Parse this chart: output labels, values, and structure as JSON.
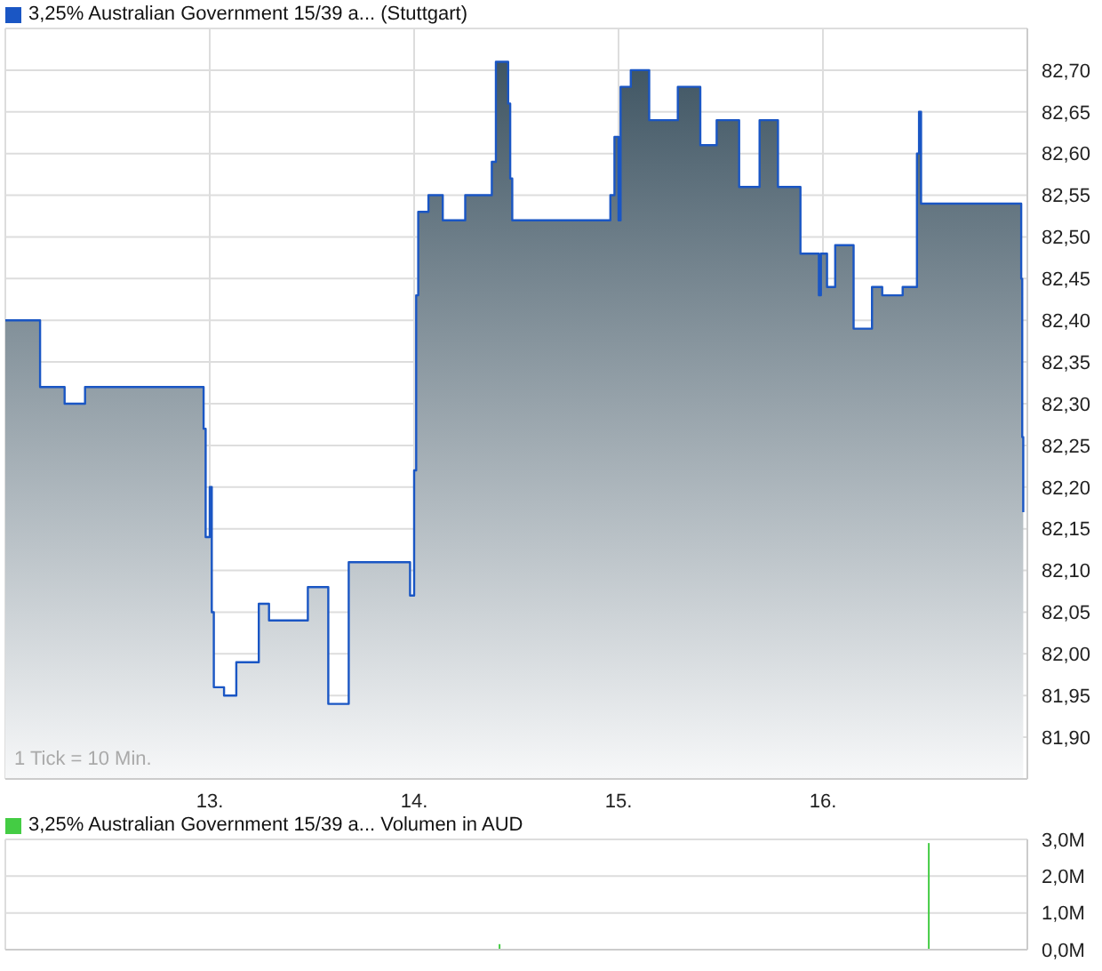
{
  "chart_data": [
    {
      "type": "area",
      "legend": "top left",
      "grid": true,
      "xlim": [
        12,
        17
      ],
      "xticks": [
        {
          "value": 13,
          "label": "13."
        },
        {
          "value": 14,
          "label": "14."
        },
        {
          "value": 15,
          "label": "15."
        },
        {
          "value": 16,
          "label": "16."
        }
      ],
      "ylim": [
        81.85,
        82.75
      ],
      "yticks": [
        {
          "value": 81.9,
          "label": "81,90"
        },
        {
          "value": 81.95,
          "label": "81,95"
        },
        {
          "value": 82,
          "label": "82,00"
        },
        {
          "value": 82.05,
          "label": "82,05"
        },
        {
          "value": 82.1,
          "label": "82,10"
        },
        {
          "value": 82.15,
          "label": "82,15"
        },
        {
          "value": 82.2,
          "label": "82,20"
        },
        {
          "value": 82.25,
          "label": "82,25"
        },
        {
          "value": 82.3,
          "label": "82,30"
        },
        {
          "value": 82.35,
          "label": "82,35"
        },
        {
          "value": 82.4,
          "label": "82,40"
        },
        {
          "value": 82.45,
          "label": "82,45"
        },
        {
          "value": 82.5,
          "label": "82,50"
        },
        {
          "value": 82.55,
          "label": "82,55"
        },
        {
          "value": 82.6,
          "label": "82,60"
        },
        {
          "value": 82.65,
          "label": "82,65"
        },
        {
          "value": 82.7,
          "label": "82,70"
        }
      ],
      "annotations": [
        "1 Tick = 10 Min."
      ],
      "series": [
        {
          "name": "3,25% Australian Government 15/39 a... (Stuttgart)",
          "color": "#1a56c4",
          "x": [
            12.0,
            12.17,
            12.17,
            12.29,
            12.29,
            12.39,
            12.39,
            12.97,
            12.97,
            12.98,
            12.98,
            13.0,
            13.0,
            13.01,
            13.01,
            13.02,
            13.02,
            13.07,
            13.07,
            13.13,
            13.13,
            13.24,
            13.24,
            13.29,
            13.29,
            13.48,
            13.48,
            13.58,
            13.58,
            13.68,
            13.68,
            13.98,
            13.98,
            14.0,
            14.0,
            14.01,
            14.01,
            14.02,
            14.02,
            14.07,
            14.07,
            14.14,
            14.14,
            14.25,
            14.25,
            14.38,
            14.38,
            14.4,
            14.4,
            14.46,
            14.46,
            14.47,
            14.47,
            14.48,
            14.48,
            14.96,
            14.96,
            14.98,
            14.98,
            15.0,
            15.0,
            15.01,
            15.01,
            15.06,
            15.06,
            15.15,
            15.15,
            15.29,
            15.29,
            15.4,
            15.4,
            15.48,
            15.48,
            15.59,
            15.59,
            15.69,
            15.69,
            15.78,
            15.78,
            15.89,
            15.89,
            15.98,
            15.98,
            15.99,
            15.99,
            16.02,
            16.02,
            16.06,
            16.06,
            16.15,
            16.15,
            16.24,
            16.24,
            16.29,
            16.29,
            16.39,
            16.39,
            16.46,
            16.46,
            16.47,
            16.47,
            16.48,
            16.48,
            16.97,
            16.97,
            16.975,
            16.975,
            16.98,
            16.98
          ],
          "values": [
            82.4,
            82.4,
            82.32,
            82.32,
            82.3,
            82.3,
            82.32,
            82.32,
            82.27,
            82.27,
            82.14,
            82.14,
            82.2,
            82.2,
            82.05,
            82.05,
            81.96,
            81.96,
            81.95,
            81.95,
            81.99,
            81.99,
            82.06,
            82.06,
            82.04,
            82.04,
            82.08,
            82.08,
            81.94,
            81.94,
            82.11,
            82.11,
            82.07,
            82.07,
            82.22,
            82.22,
            82.43,
            82.43,
            82.53,
            82.53,
            82.55,
            82.55,
            82.52,
            82.52,
            82.55,
            82.55,
            82.59,
            82.59,
            82.71,
            82.71,
            82.66,
            82.66,
            82.57,
            82.57,
            82.52,
            82.52,
            82.55,
            82.55,
            82.62,
            82.62,
            82.52,
            82.52,
            82.68,
            82.68,
            82.7,
            82.7,
            82.64,
            82.64,
            82.68,
            82.68,
            82.61,
            82.61,
            82.64,
            82.64,
            82.56,
            82.56,
            82.64,
            82.64,
            82.56,
            82.56,
            82.48,
            82.48,
            82.43,
            82.43,
            82.48,
            82.48,
            82.44,
            82.44,
            82.49,
            82.49,
            82.39,
            82.39,
            82.44,
            82.44,
            82.43,
            82.43,
            82.44,
            82.44,
            82.6,
            82.6,
            82.65,
            82.65,
            82.54,
            82.54,
            82.45,
            82.45,
            82.26,
            82.26,
            82.17
          ]
        }
      ]
    },
    {
      "type": "bar",
      "legend": "top left",
      "grid": true,
      "tick_labels": "y",
      "xlim": [
        12,
        17
      ],
      "xticks": [
        {
          "value": 13,
          "label": null
        },
        {
          "value": 14,
          "label": null
        },
        {
          "value": 15,
          "label": null
        },
        {
          "value": 16,
          "label": null
        }
      ],
      "ylim": [
        0,
        3
      ],
      "yticks": [
        {
          "value": 0,
          "label": "0,0M"
        },
        {
          "value": 1,
          "label": "1,0M"
        },
        {
          "value": 2,
          "label": "2,0M"
        },
        {
          "value": 3,
          "label": "3,0M"
        }
      ],
      "series": [
        {
          "name": "3,25% Australian Government 15/39 a... Volumen in AUD",
          "color": "#44cc44",
          "x": [
            14.42,
            16.52
          ],
          "values": [
            0.15,
            2.9
          ]
        }
      ]
    }
  ]
}
